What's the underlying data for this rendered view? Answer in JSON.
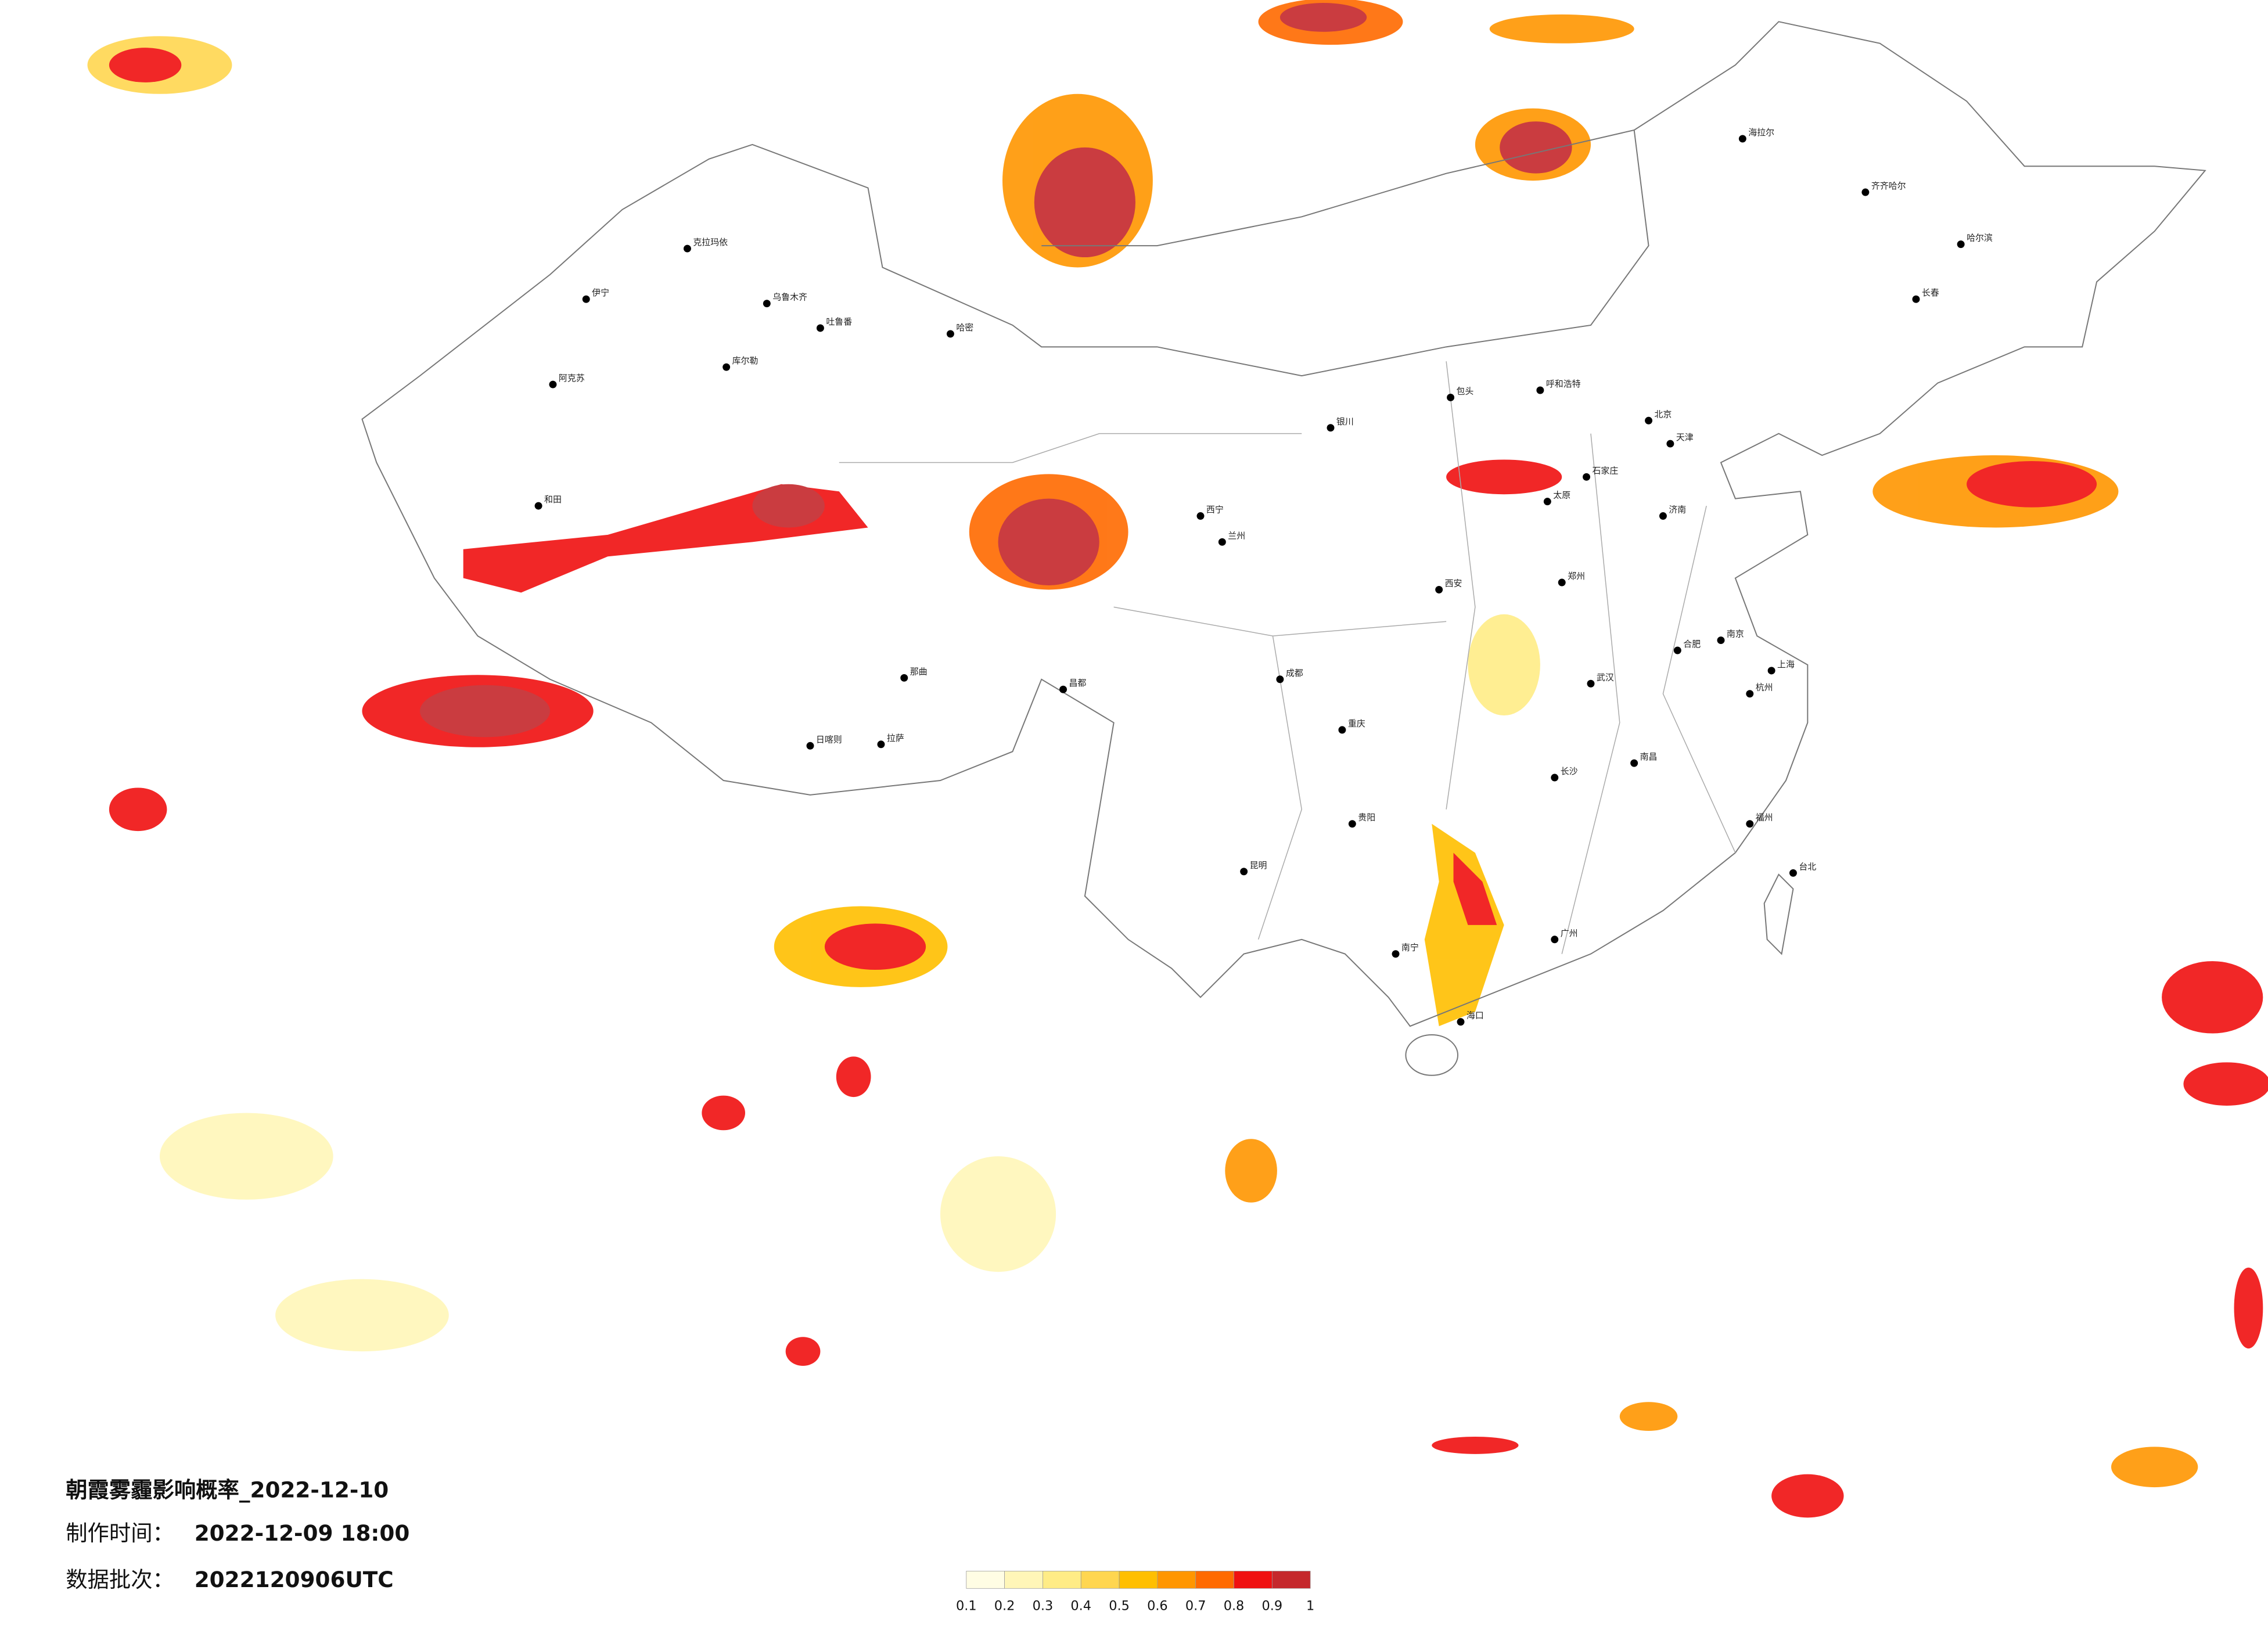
{
  "header": {
    "title": "朝霞雾霾影响概率_2022-12-10",
    "made_label": "制作时间：",
    "made_time": "2022-12-09 18:00",
    "batch_label": "数据批次：",
    "batch": "2022120906UTC"
  },
  "colorbar": {
    "ticks": [
      0.1,
      0.2,
      0.3,
      0.4,
      0.5,
      0.6,
      0.7,
      0.8,
      0.9,
      1
    ],
    "colors": [
      "#fffde4",
      "#fff6b8",
      "#ffec86",
      "#ffd650",
      "#ffbf00",
      "#ff9600",
      "#ff6a00",
      "#f01010",
      "#c5282c"
    ]
  },
  "cities": [
    "克拉玛依",
    "伊宁",
    "乌鲁木齐",
    "吐鲁番",
    "哈密",
    "库尔勒",
    "阿克苏",
    "和田",
    "那曲",
    "日喀则",
    "拉萨",
    "昌都",
    "西宁",
    "兰州",
    "银川",
    "包头",
    "呼和浩特",
    "北京",
    "天津",
    "石家庄",
    "太原",
    "济南",
    "西安",
    "郑州",
    "武汉",
    "合肥",
    "南京",
    "上海",
    "杭州",
    "南昌",
    "长沙",
    "福州",
    "广州",
    "南宁",
    "贵阳",
    "昆明",
    "成都",
    "重庆",
    "哈尔滨",
    "长春",
    "海拉尔",
    "齐齐哈尔",
    "海口",
    "台北"
  ]
}
